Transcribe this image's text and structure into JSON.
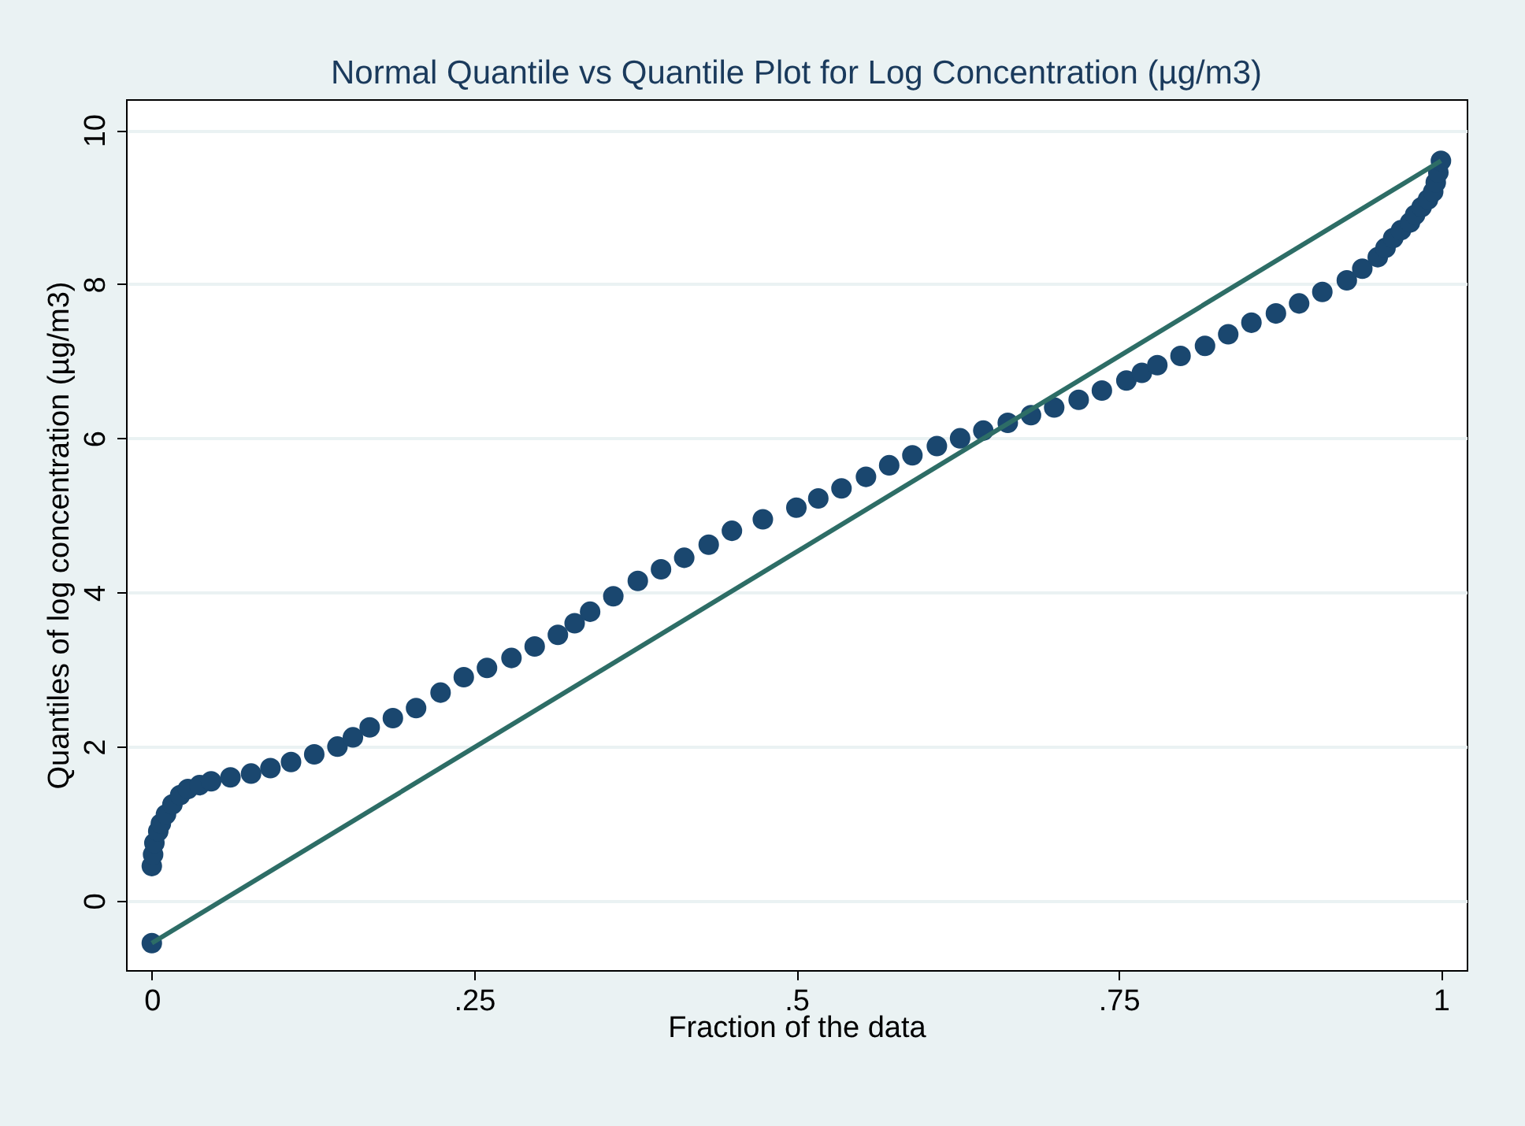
{
  "chart_data": {
    "type": "scatter",
    "title": "Normal Quantile vs Quantile Plot for Log Concentration (µg/m3)",
    "xlabel": "Fraction of the data",
    "ylabel": "Quantiles of log concentration (µg/m3)",
    "xlim": [
      -0.02,
      1.02
    ],
    "ylim": [
      -0.9,
      10.4
    ],
    "xticks": [
      0,
      {
        "value": 0.25,
        "label": ".25"
      },
      {
        "value": 0.5,
        "label": ".5"
      },
      {
        "value": 0.75,
        "label": ".75"
      },
      1
    ],
    "yticks": [
      0,
      2,
      4,
      6,
      8,
      10
    ],
    "grid": "y",
    "series": [
      {
        "color": "#1a476f",
        "marker": "circle",
        "x": [
          0,
          0,
          0.001,
          0.002,
          0.005,
          0.007,
          0.011,
          0.016,
          0.022,
          0.028,
          0.037,
          0.046,
          0.061,
          0.077,
          0.092,
          0.108,
          0.126,
          0.144,
          0.156,
          0.169,
          0.187,
          0.205,
          0.224,
          0.242,
          0.26,
          0.279,
          0.297,
          0.315,
          0.328,
          0.34,
          0.358,
          0.377,
          0.395,
          0.413,
          0.432,
          0.45,
          0.474,
          0.5,
          0.517,
          0.535,
          0.554,
          0.572,
          0.59,
          0.609,
          0.627,
          0.645,
          0.664,
          0.682,
          0.7,
          0.719,
          0.737,
          0.756,
          0.768,
          0.78,
          0.798,
          0.817,
          0.835,
          0.853,
          0.872,
          0.89,
          0.908,
          0.927,
          0.939,
          0.951,
          0.957,
          0.963,
          0.969,
          0.976,
          0.98,
          0.985,
          0.99,
          0.994,
          0.996,
          0.998,
          1
        ],
        "values": [
          -0.55,
          0.45,
          0.6,
          0.75,
          0.9,
          1.0,
          1.12,
          1.25,
          1.37,
          1.45,
          1.5,
          1.55,
          1.6,
          1.65,
          1.72,
          1.8,
          1.9,
          2.0,
          2.12,
          2.25,
          2.37,
          2.5,
          2.7,
          2.9,
          3.02,
          3.15,
          3.3,
          3.45,
          3.6,
          3.75,
          3.95,
          4.15,
          4.3,
          4.45,
          4.62,
          4.8,
          4.95,
          5.1,
          5.22,
          5.35,
          5.5,
          5.65,
          5.78,
          5.9,
          6.0,
          6.1,
          6.2,
          6.3,
          6.4,
          6.5,
          6.62,
          6.75,
          6.85,
          6.95,
          7.07,
          7.2,
          7.35,
          7.5,
          7.62,
          7.75,
          7.9,
          8.05,
          8.2,
          8.35,
          8.47,
          8.6,
          8.7,
          8.8,
          8.9,
          9.0,
          9.1,
          9.2,
          9.32,
          9.45,
          9.6
        ]
      },
      {
        "type": "line",
        "color": "#2d6d66",
        "marker": "none",
        "x": [
          0,
          1
        ],
        "values": [
          -0.55,
          9.6
        ]
      }
    ]
  }
}
